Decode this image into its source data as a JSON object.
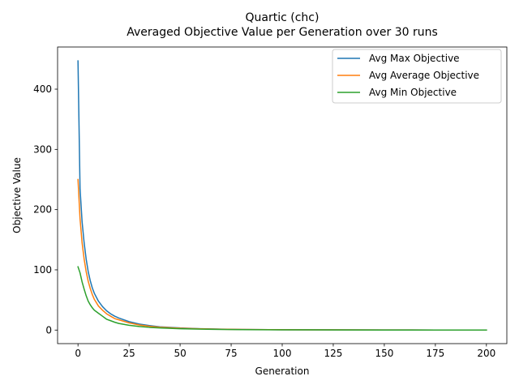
{
  "chart_data": {
    "type": "line",
    "title": "Quartic (chc)",
    "subtitle": "Averaged Objective Value per Generation over 30 runs",
    "xlabel": "Generation",
    "ylabel": "Objective Value",
    "xlim": [
      -10,
      210
    ],
    "ylim": [
      -22.5,
      470
    ],
    "xticks": [
      0,
      25,
      50,
      75,
      100,
      125,
      150,
      175,
      200
    ],
    "yticks": [
      0,
      100,
      200,
      300,
      400
    ],
    "grid": false,
    "legend_position": "top-right",
    "series": [
      {
        "name": "Avg Max Objective",
        "color": "#1f77b4",
        "x": [
          0,
          1,
          2,
          3,
          4,
          5,
          6,
          7,
          8,
          10,
          12,
          14,
          16,
          18,
          20,
          25,
          30,
          35,
          40,
          50,
          60,
          70,
          80,
          100,
          125,
          150,
          175,
          200
        ],
        "y": [
          447,
          235,
          180,
          145,
          118,
          97,
          82,
          70,
          61,
          48,
          39,
          32,
          27,
          23,
          20,
          14,
          10,
          7.5,
          5.5,
          3.5,
          2.3,
          1.6,
          1.1,
          0.6,
          0.3,
          0.2,
          0.1,
          0.1
        ]
      },
      {
        "name": "Avg Average Objective",
        "color": "#ff7f0e",
        "x": [
          0,
          1,
          2,
          3,
          4,
          5,
          6,
          7,
          8,
          10,
          12,
          14,
          16,
          18,
          20,
          25,
          30,
          35,
          40,
          50,
          60,
          70,
          80,
          100,
          125,
          150,
          175,
          200
        ],
        "y": [
          250,
          185,
          145,
          118,
          97,
          81,
          69,
          59,
          51,
          40,
          33,
          27,
          23,
          19,
          17,
          12,
          8.5,
          6.3,
          4.7,
          3.0,
          2.0,
          1.4,
          1.0,
          0.5,
          0.3,
          0.2,
          0.1,
          0.1
        ]
      },
      {
        "name": "Avg Min Objective",
        "color": "#2ca02c",
        "x": [
          0,
          1,
          2,
          3,
          4,
          5,
          6,
          7,
          8,
          10,
          12,
          14,
          16,
          18,
          20,
          25,
          30,
          35,
          40,
          50,
          60,
          70,
          80,
          100,
          125,
          150,
          175,
          200
        ],
        "y": [
          105,
          95,
          80,
          68,
          57,
          48,
          42,
          37,
          33,
          28,
          23,
          18,
          15.5,
          13,
          11,
          8,
          6,
          4.5,
          3.5,
          2.2,
          1.5,
          1.0,
          0.7,
          0.4,
          0.2,
          0.1,
          0.1,
          0.1
        ]
      }
    ]
  }
}
